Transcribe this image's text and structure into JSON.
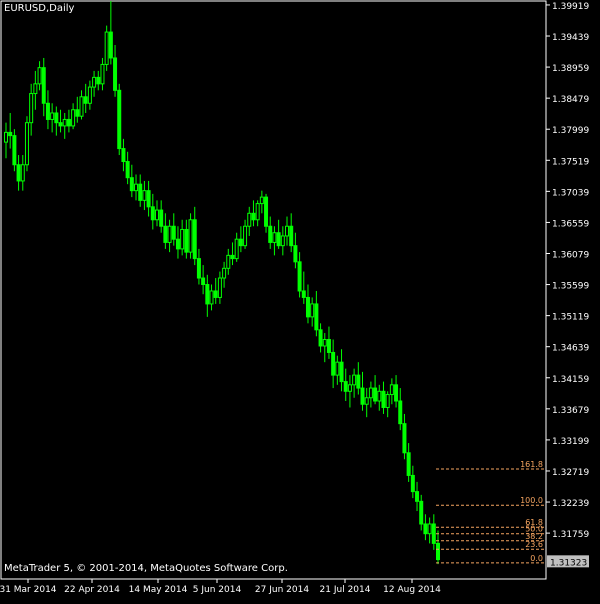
{
  "window": {
    "symbol_label": "EURUSD,Daily",
    "copyright": "MetaTrader 5, © 2001-2014, MetaQuotes Software Corp."
  },
  "colors": {
    "background": "#000000",
    "candle": "#00ff00",
    "fib": "#f4a460",
    "axis": "#ffffff",
    "current_price_bg": "#c0c0c0"
  },
  "chart_data": {
    "type": "candlestick",
    "symbol": "EURUSD",
    "timeframe": "Daily",
    "ylim": [
      1.3105,
      1.3998
    ],
    "y_ticks": [
      "1.39919",
      "1.39439",
      "1.38959",
      "1.38479",
      "1.37999",
      "1.37519",
      "1.37039",
      "1.36559",
      "1.36079",
      "1.35599",
      "1.35119",
      "1.34639",
      "1.34159",
      "1.33679",
      "1.33199",
      "1.32719",
      "1.32239",
      "1.31759"
    ],
    "x_ticks": [
      "31 Mar 2014",
      "22 Apr 2014",
      "14 May 2014",
      "5 Jun 2014",
      "27 Jun 2014",
      "21 Jul 2014",
      "12 Aug 2014"
    ],
    "current_price": "1.31323",
    "fibonacci": {
      "levels": [
        {
          "label": "161.8",
          "price": 1.3275
        },
        {
          "label": "100.0",
          "price": 1.3219
        },
        {
          "label": "61.8",
          "price": 1.3185
        },
        {
          "label": "50.0",
          "price": 1.3175
        },
        {
          "label": "38.2",
          "price": 1.3164
        },
        {
          "label": "23.6",
          "price": 1.3151
        },
        {
          "label": "0.0",
          "price": 1.313
        }
      ]
    },
    "candles": [
      [
        1.378,
        1.381,
        1.3755,
        1.3795
      ],
      [
        1.3795,
        1.3825,
        1.377,
        1.379
      ],
      [
        1.379,
        1.38,
        1.3735,
        1.3745
      ],
      [
        1.3745,
        1.376,
        1.3705,
        1.372
      ],
      [
        1.372,
        1.376,
        1.3705,
        1.3745
      ],
      [
        1.3745,
        1.382,
        1.3735,
        1.381
      ],
      [
        1.381,
        1.387,
        1.379,
        1.3855
      ],
      [
        1.3855,
        1.389,
        1.383,
        1.387
      ],
      [
        1.387,
        1.3905,
        1.386,
        1.3895
      ],
      [
        1.3895,
        1.391,
        1.382,
        1.384
      ],
      [
        1.384,
        1.386,
        1.38,
        1.3815
      ],
      [
        1.3815,
        1.384,
        1.3795,
        1.3825
      ],
      [
        1.3825,
        1.3835,
        1.379,
        1.381
      ],
      [
        1.381,
        1.383,
        1.3795,
        1.3805
      ],
      [
        1.3805,
        1.3825,
        1.3785,
        1.3815
      ],
      [
        1.3815,
        1.383,
        1.3795,
        1.3805
      ],
      [
        1.3805,
        1.384,
        1.38,
        1.383
      ],
      [
        1.383,
        1.385,
        1.381,
        1.382
      ],
      [
        1.382,
        1.386,
        1.3815,
        1.385
      ],
      [
        1.385,
        1.387,
        1.3825,
        1.384
      ],
      [
        1.384,
        1.3875,
        1.383,
        1.3865
      ],
      [
        1.3865,
        1.389,
        1.385,
        1.388
      ],
      [
        1.388,
        1.389,
        1.386,
        1.387
      ],
      [
        1.387,
        1.391,
        1.386,
        1.39
      ],
      [
        1.39,
        1.396,
        1.389,
        1.395
      ],
      [
        1.395,
        1.3998,
        1.39,
        1.391
      ],
      [
        1.391,
        1.393,
        1.385,
        1.386
      ],
      [
        1.386,
        1.387,
        1.376,
        1.377
      ],
      [
        1.377,
        1.3785,
        1.3735,
        1.375
      ],
      [
        1.375,
        1.3765,
        1.3715,
        1.3725
      ],
      [
        1.3725,
        1.3745,
        1.3695,
        1.3705
      ],
      [
        1.3705,
        1.373,
        1.369,
        1.3715
      ],
      [
        1.3715,
        1.373,
        1.368,
        1.369
      ],
      [
        1.369,
        1.372,
        1.3675,
        1.3705
      ],
      [
        1.3705,
        1.372,
        1.3665,
        1.368
      ],
      [
        1.368,
        1.37,
        1.3645,
        1.366
      ],
      [
        1.366,
        1.369,
        1.365,
        1.3675
      ],
      [
        1.3675,
        1.369,
        1.364,
        1.365
      ],
      [
        1.365,
        1.367,
        1.3615,
        1.3625
      ],
      [
        1.3625,
        1.366,
        1.361,
        1.365
      ],
      [
        1.365,
        1.367,
        1.362,
        1.363
      ],
      [
        1.363,
        1.365,
        1.36,
        1.3615
      ],
      [
        1.3615,
        1.366,
        1.3605,
        1.3645
      ],
      [
        1.3645,
        1.366,
        1.36,
        1.361
      ],
      [
        1.361,
        1.367,
        1.36,
        1.366
      ],
      [
        1.366,
        1.368,
        1.359,
        1.36
      ],
      [
        1.36,
        1.3615,
        1.356,
        1.357
      ],
      [
        1.357,
        1.359,
        1.3545,
        1.356
      ],
      [
        1.356,
        1.3575,
        1.351,
        1.353
      ],
      [
        1.353,
        1.356,
        1.352,
        1.355
      ],
      [
        1.355,
        1.357,
        1.353,
        1.354
      ],
      [
        1.354,
        1.358,
        1.353,
        1.357
      ],
      [
        1.357,
        1.3595,
        1.3555,
        1.3585
      ],
      [
        1.3585,
        1.3615,
        1.3575,
        1.3605
      ],
      [
        1.3605,
        1.3625,
        1.359,
        1.36
      ],
      [
        1.36,
        1.364,
        1.3595,
        1.363
      ],
      [
        1.363,
        1.365,
        1.361,
        1.362
      ],
      [
        1.362,
        1.366,
        1.3615,
        1.365
      ],
      [
        1.365,
        1.368,
        1.3635,
        1.367
      ],
      [
        1.367,
        1.369,
        1.365,
        1.366
      ],
      [
        1.366,
        1.369,
        1.365,
        1.3685
      ],
      [
        1.3685,
        1.3705,
        1.367,
        1.3695
      ],
      [
        1.3695,
        1.37,
        1.364,
        1.365
      ],
      [
        1.365,
        1.3665,
        1.3615,
        1.3625
      ],
      [
        1.3625,
        1.365,
        1.3605,
        1.364
      ],
      [
        1.364,
        1.366,
        1.3615,
        1.362
      ],
      [
        1.362,
        1.365,
        1.3605,
        1.3635
      ],
      [
        1.3635,
        1.3665,
        1.362,
        1.365
      ],
      [
        1.365,
        1.367,
        1.361,
        1.362
      ],
      [
        1.362,
        1.364,
        1.3585,
        1.3595
      ],
      [
        1.3595,
        1.361,
        1.354,
        1.355
      ],
      [
        1.355,
        1.358,
        1.353,
        1.354
      ],
      [
        1.354,
        1.356,
        1.35,
        1.351
      ],
      [
        1.351,
        1.354,
        1.3495,
        1.353
      ],
      [
        1.353,
        1.355,
        1.348,
        1.349
      ],
      [
        1.349,
        1.35,
        1.3455,
        1.3465
      ],
      [
        1.3465,
        1.3485,
        1.344,
        1.3475
      ],
      [
        1.3475,
        1.3495,
        1.3445,
        1.3455
      ],
      [
        1.3455,
        1.3475,
        1.34,
        1.342
      ],
      [
        1.342,
        1.345,
        1.3405,
        1.344
      ],
      [
        1.344,
        1.346,
        1.3395,
        1.341
      ],
      [
        1.341,
        1.343,
        1.338,
        1.3395
      ],
      [
        1.3395,
        1.342,
        1.337,
        1.3405
      ],
      [
        1.3405,
        1.343,
        1.3385,
        1.342
      ],
      [
        1.342,
        1.344,
        1.339,
        1.34
      ],
      [
        1.34,
        1.3425,
        1.3365,
        1.3375
      ],
      [
        1.3375,
        1.34,
        1.3355,
        1.3385
      ],
      [
        1.3385,
        1.341,
        1.337,
        1.34
      ],
      [
        1.34,
        1.342,
        1.3375,
        1.338
      ],
      [
        1.338,
        1.3405,
        1.3365,
        1.3395
      ],
      [
        1.3395,
        1.341,
        1.336,
        1.337
      ],
      [
        1.337,
        1.3395,
        1.3355,
        1.339
      ],
      [
        1.339,
        1.3415,
        1.3375,
        1.3405
      ],
      [
        1.3405,
        1.342,
        1.337,
        1.338
      ],
      [
        1.338,
        1.34,
        1.3335,
        1.3345
      ],
      [
        1.3345,
        1.336,
        1.329,
        1.33
      ],
      [
        1.33,
        1.3315,
        1.3255,
        1.3265
      ],
      [
        1.3265,
        1.328,
        1.323,
        1.324
      ],
      [
        1.324,
        1.3255,
        1.321,
        1.3225
      ],
      [
        1.3225,
        1.3235,
        1.318,
        1.319
      ],
      [
        1.319,
        1.3205,
        1.3165,
        1.3175
      ],
      [
        1.3175,
        1.32,
        1.316,
        1.319
      ],
      [
        1.319,
        1.3205,
        1.315,
        1.316
      ],
      [
        1.316,
        1.318,
        1.3128,
        1.3135
      ]
    ]
  }
}
